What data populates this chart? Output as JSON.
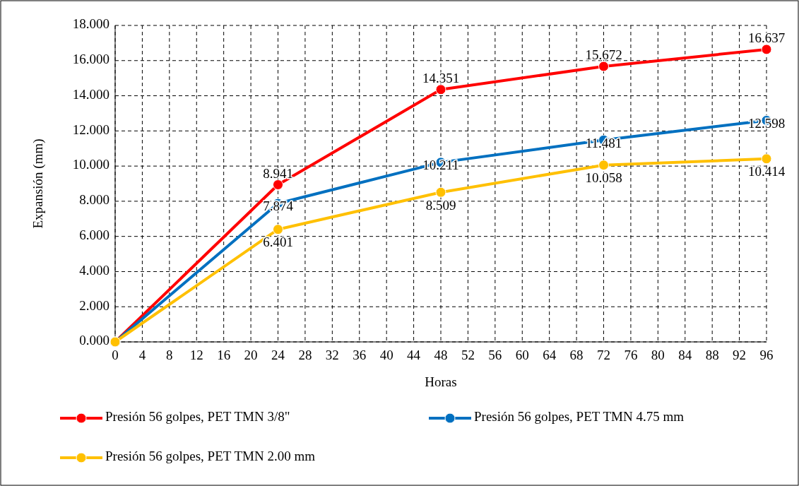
{
  "chart_data": {
    "type": "line",
    "xlabel": "Horas",
    "ylabel": "Expansión (mm)",
    "x": [
      0,
      24,
      48,
      72,
      96
    ],
    "xlim": [
      0,
      96
    ],
    "xticks": [
      0,
      4,
      8,
      12,
      16,
      20,
      24,
      28,
      32,
      36,
      40,
      44,
      48,
      52,
      56,
      60,
      64,
      68,
      72,
      76,
      80,
      84,
      88,
      92,
      96
    ],
    "ylim": [
      0,
      18
    ],
    "yticks": [
      {
        "value": 0,
        "label": "0.000"
      },
      {
        "value": 2,
        "label": "2.000"
      },
      {
        "value": 4,
        "label": "4.000"
      },
      {
        "value": 6,
        "label": "6.000"
      },
      {
        "value": 8,
        "label": "8.000"
      },
      {
        "value": 10,
        "label": "10.000"
      },
      {
        "value": 12,
        "label": "12.000"
      },
      {
        "value": 14,
        "label": "14.000"
      },
      {
        "value": 16,
        "label": "16.000"
      },
      {
        "value": 18,
        "label": "18.000"
      }
    ],
    "grid": true,
    "legend": "bottom",
    "marker": "circle",
    "line_style": "solid",
    "series": [
      {
        "name": "Presión 56 golpes, PET TMN 3/8\"",
        "color": "#ff0000",
        "values": [
          0,
          8.941,
          14.351,
          15.672,
          16.637
        ],
        "value_labels": [
          null,
          "8.941",
          "14.351",
          "15.672",
          "16.637"
        ]
      },
      {
        "name": "Presión 56 golpes, PET TMN 4.75 mm",
        "color": "#0070c0",
        "values": [
          0,
          7.874,
          10.211,
          11.481,
          12.598
        ],
        "value_labels": [
          null,
          "7.874",
          "10.211",
          "11.481",
          "12.598"
        ]
      },
      {
        "name": "Presión 56 golpes, PET TMN 2.00 mm",
        "color": "#ffc000",
        "values": [
          0,
          6.401,
          8.509,
          10.058,
          10.414
        ],
        "value_labels": [
          null,
          "6.401",
          "8.509",
          "10.058",
          "10.414"
        ]
      }
    ]
  }
}
